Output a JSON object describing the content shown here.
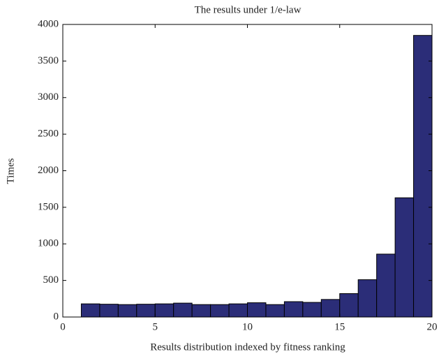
{
  "chart_data": {
    "type": "histogram",
    "title": "The results under 1/e-law",
    "xlabel": "Results distribution indexed by fitness ranking",
    "ylabel": "Times",
    "bins": [
      0,
      1,
      2,
      3,
      4,
      5,
      6,
      7,
      8,
      9,
      10,
      11,
      12,
      13,
      14,
      15,
      16,
      17,
      18,
      19,
      20
    ],
    "counts": [
      0,
      180,
      175,
      170,
      175,
      180,
      190,
      170,
      170,
      180,
      195,
      170,
      210,
      200,
      240,
      320,
      510,
      860,
      1630,
      3850
    ],
    "color": "#2b2d78",
    "xlim": [
      0,
      20
    ],
    "xticks": [
      0,
      5,
      10,
      15,
      20
    ],
    "ylim": [
      0,
      4000
    ],
    "yticks": [
      0,
      500,
      1000,
      1500,
      2000,
      2500,
      3000,
      3500,
      4000
    ]
  }
}
